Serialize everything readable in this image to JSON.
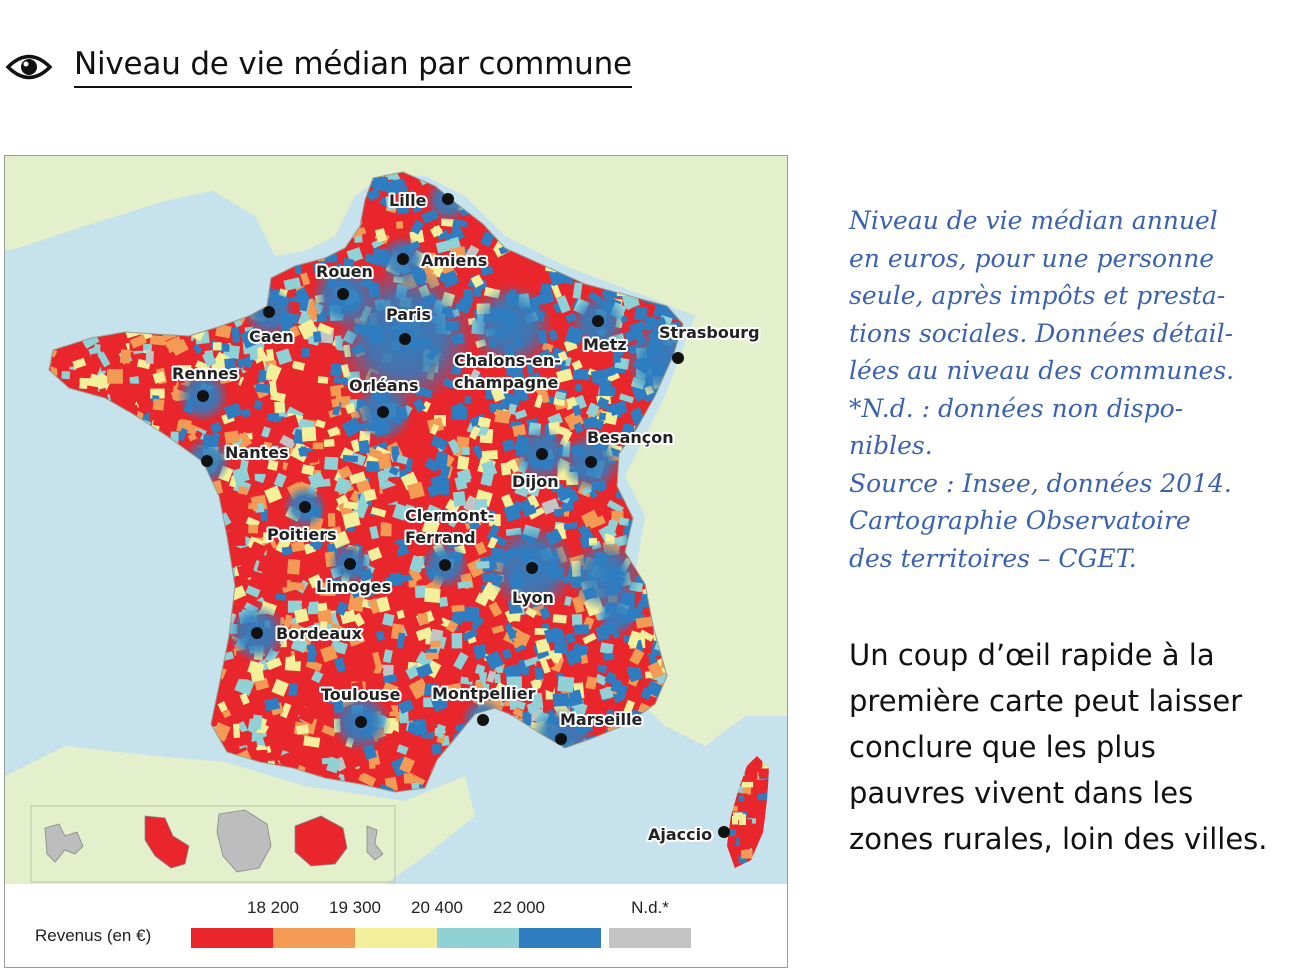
{
  "header": {
    "title": "Niveau de vie médian par commune",
    "icon": "eye-icon"
  },
  "map": {
    "colors": {
      "sea": "#c6e2ec",
      "land_neighbors": "#e4efcc",
      "border": "#c9c9b0",
      "city_dot": "#111111",
      "tier1": "#e8262c",
      "tier2": "#f39a55",
      "tier3": "#f4ef9b",
      "tier4": "#8fd1d4",
      "tier5": "#2e7dc0",
      "nd": "#c4c4c4"
    },
    "cities": [
      {
        "name": "Lille"
      },
      {
        "name": "Amiens"
      },
      {
        "name": "Rouen"
      },
      {
        "name": "Paris"
      },
      {
        "name": "Caen"
      },
      {
        "name": "Metz"
      },
      {
        "name": "Strasbourg"
      },
      {
        "name": "Rennes"
      },
      {
        "name": "Chalons-en-"
      },
      {
        "name": "champagne"
      },
      {
        "name": "Orléans"
      },
      {
        "name": "Besançon"
      },
      {
        "name": "Nantes"
      },
      {
        "name": "Dijon"
      },
      {
        "name": "Poitiers"
      },
      {
        "name": "Clermont-"
      },
      {
        "name": "Ferrand"
      },
      {
        "name": "Limoges"
      },
      {
        "name": "Lyon"
      },
      {
        "name": "Bordeaux"
      },
      {
        "name": "Toulouse"
      },
      {
        "name": "Montpellier"
      },
      {
        "name": "Marseille"
      },
      {
        "name": "Ajaccio"
      }
    ]
  },
  "legend": {
    "title": "Revenus (en €)",
    "ticks": [
      "18 200",
      "19 300",
      "20 400",
      "22 000",
      "N.d.*"
    ],
    "classes": [
      {
        "color": "#e8262c"
      },
      {
        "color": "#f39a55"
      },
      {
        "color": "#f4ef9b"
      },
      {
        "color": "#8fd1d4"
      },
      {
        "color": "#2e7dc0"
      },
      {
        "color": "#c4c4c4"
      }
    ]
  },
  "caption": {
    "lines": [
      "Niveau de vie médian annuel",
      "en euros, pour une personne",
      "seule, après impôts et presta-",
      "tions sociales. Données détail-",
      "lées au niveau des communes.",
      "*N.d. : données non dispo-",
      "nibles.",
      "Source : Insee, données 2014.",
      "Cartographie Observatoire",
      "des territoires – CGET."
    ]
  },
  "body": {
    "lines": [
      "Un coup d’œil rapide à la",
      "première carte peut laisser",
      "conclure que les plus",
      "pauvres vivent dans les",
      "zones rurales, loin des villes."
    ]
  }
}
